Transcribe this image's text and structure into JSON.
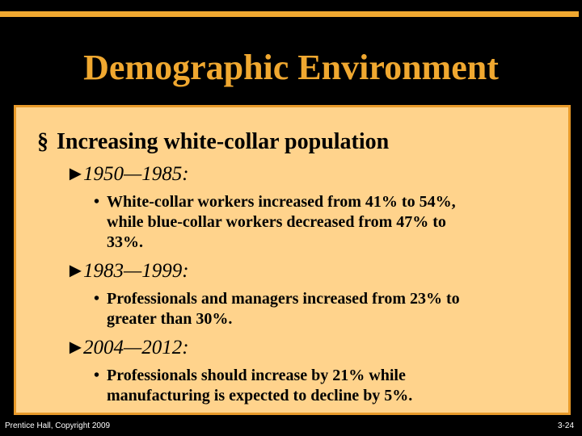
{
  "title": "Demographic Environment",
  "bullet": {
    "text": "Increasing white-collar population",
    "items": [
      {
        "heading": "1950—1985:",
        "points": [
          [
            "White-collar workers increased from 41% to 54%,",
            "while blue-collar workers decreased from 47% to",
            "33%."
          ]
        ]
      },
      {
        "heading": "1983—1999:",
        "points": [
          [
            "Professionals and managers increased from 23% to",
            "greater than 30%."
          ]
        ]
      },
      {
        "heading": "2004—2012:",
        "points": [
          [
            "Professionals should increase by 21% while",
            "manufacturing is expected to decline by 5%."
          ]
        ]
      }
    ]
  },
  "footer": {
    "left": "Prentice Hall, Copyright 2009",
    "right": "3-24"
  }
}
